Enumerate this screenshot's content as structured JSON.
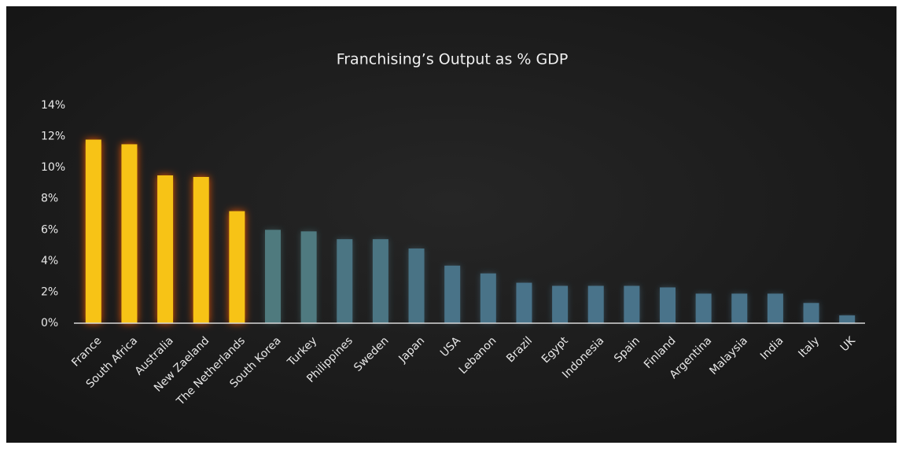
{
  "chart_data": {
    "type": "bar",
    "title": "Franchising’s Output as % GDP",
    "categories": [
      "France",
      "South Africa",
      "Australia",
      "New Zaeland",
      "The Netherlands",
      "South Korea",
      "Turkey",
      "Philippines",
      "Sweden",
      "Japan",
      "USA",
      "Lebanon",
      "Brazil",
      "Egypt",
      "Indonesia",
      "Spain",
      "Finland",
      "Argentina",
      "Malaysia",
      "India",
      "Italy",
      "UK"
    ],
    "values": [
      11.8,
      11.5,
      9.5,
      9.4,
      7.2,
      6.0,
      5.9,
      5.4,
      5.4,
      4.8,
      3.7,
      3.2,
      2.6,
      2.4,
      2.4,
      2.4,
      2.3,
      1.9,
      1.9,
      1.9,
      1.3,
      0.5
    ],
    "colors": [
      "#f7c315",
      "#f7c315",
      "#f7c315",
      "#f7c315",
      "#f7c315",
      "#4f7a7e",
      "#4f7a80",
      "#4b7583",
      "#4b7583",
      "#4a7385",
      "#497388",
      "#497388",
      "#49738a",
      "#49738a",
      "#49738a",
      "#49738a",
      "#49738a",
      "#49738a",
      "#49738a",
      "#49738a",
      "#49738a",
      "#49738a"
    ],
    "ylim": [
      0,
      14
    ],
    "yticks": [
      {
        "value": 0,
        "label": "0%"
      },
      {
        "value": 2,
        "label": "2%"
      },
      {
        "value": 4,
        "label": "4%"
      },
      {
        "value": 6,
        "label": "6%"
      },
      {
        "value": 8,
        "label": "8%"
      },
      {
        "value": 10,
        "label": "10%"
      },
      {
        "value": 12,
        "label": "12%"
      },
      {
        "value": 14,
        "label": "14%"
      }
    ]
  }
}
